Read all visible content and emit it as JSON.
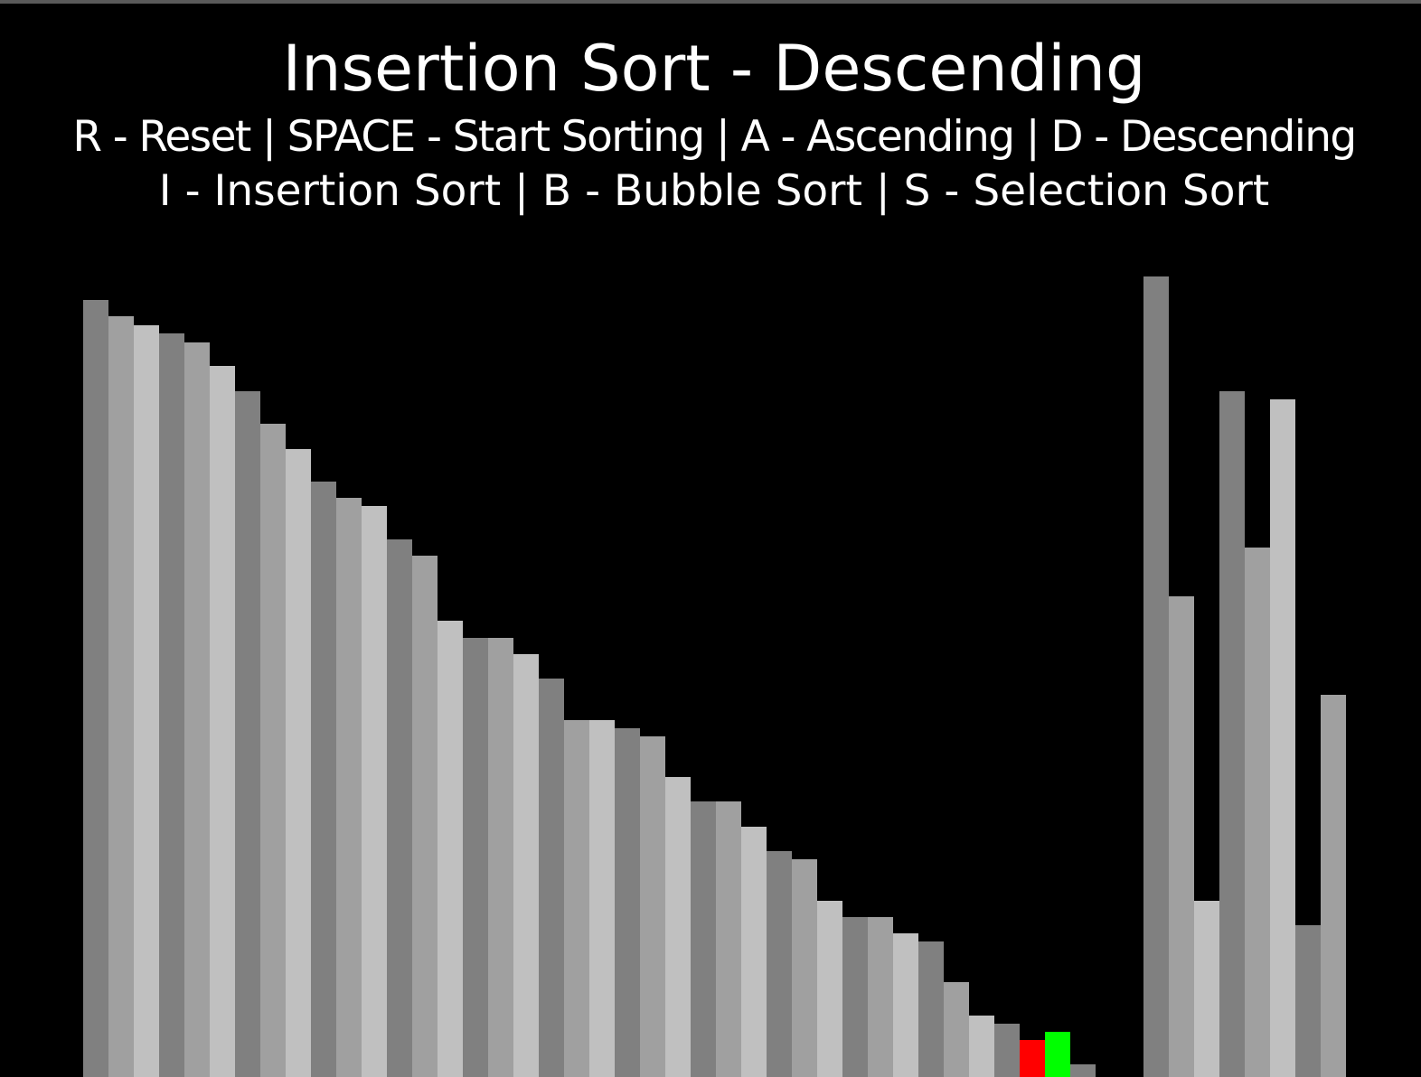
{
  "title": "Insertion Sort - Descending",
  "help_line_1": "R - Reset | SPACE - Start Sorting | A - Ascending | D - Descending",
  "help_line_2": "I - Insertion Sort | B - Bubble Sort | S - Selection Sort",
  "colors": {
    "background": "#000000",
    "bar_shades": [
      "#808080",
      "#a0a0a0",
      "#c0c0c0"
    ],
    "compare": "#ff0000",
    "current": "#00ff00"
  },
  "bar_values": [
    860,
    842,
    832,
    823,
    813,
    787,
    759,
    723,
    695,
    659,
    641,
    632,
    595,
    577,
    505,
    486,
    486,
    468,
    441,
    395,
    395,
    386,
    377,
    332,
    305,
    305,
    277,
    250,
    241,
    195,
    177,
    177,
    159,
    150,
    105,
    68,
    59,
    41,
    50,
    14,
    0,
    0,
    0,
    0,
    0,
    0,
    0,
    0,
    0,
    0,
    0,
    0,
    0,
    0,
    0,
    0,
    0,
    0,
    0,
    0,
    0,
    0,
    0,
    0,
    0,
    0,
    0,
    0,
    0,
    0,
    0,
    0,
    0,
    0,
    0,
    0,
    0,
    0,
    0,
    0,
    0,
    0,
    0,
    0,
    0,
    0,
    0,
    0,
    0,
    0,
    0,
    0,
    0,
    0,
    0,
    0,
    0,
    0,
    0,
    0,
    0,
    0,
    0,
    0,
    0,
    0,
    0,
    0,
    0,
    0
  ],
  "unsorted_values": [
    886,
    532,
    195,
    759,
    586,
    750,
    168,
    423
  ],
  "compare_index": 37,
  "current_index": 38
}
